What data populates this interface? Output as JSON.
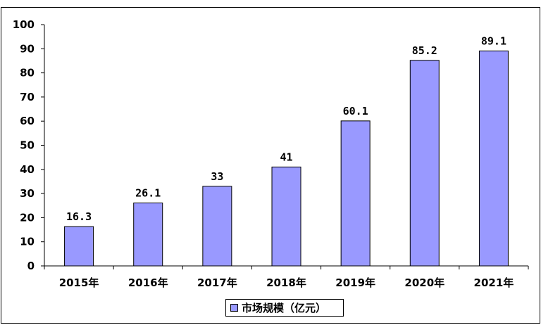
{
  "chart_data": {
    "type": "bar",
    "categories": [
      "2015年",
      "2016年",
      "2017年",
      "2018年",
      "2019年",
      "2020年",
      "2021年"
    ],
    "series": [
      {
        "name": "市场规模（亿元）",
        "values": [
          16.3,
          26.1,
          33,
          41,
          60.1,
          85.2,
          89.1
        ],
        "color": "#9999ff"
      }
    ],
    "data_labels": [
      "16.3",
      "26.1",
      "33",
      "41",
      "60.1",
      "85.2",
      "89.1"
    ],
    "ylim": [
      0,
      100
    ],
    "yticks": [
      0,
      10,
      20,
      30,
      40,
      50,
      60,
      70,
      80,
      90,
      100
    ],
    "grid": false,
    "legend_position": "bottom-center"
  }
}
